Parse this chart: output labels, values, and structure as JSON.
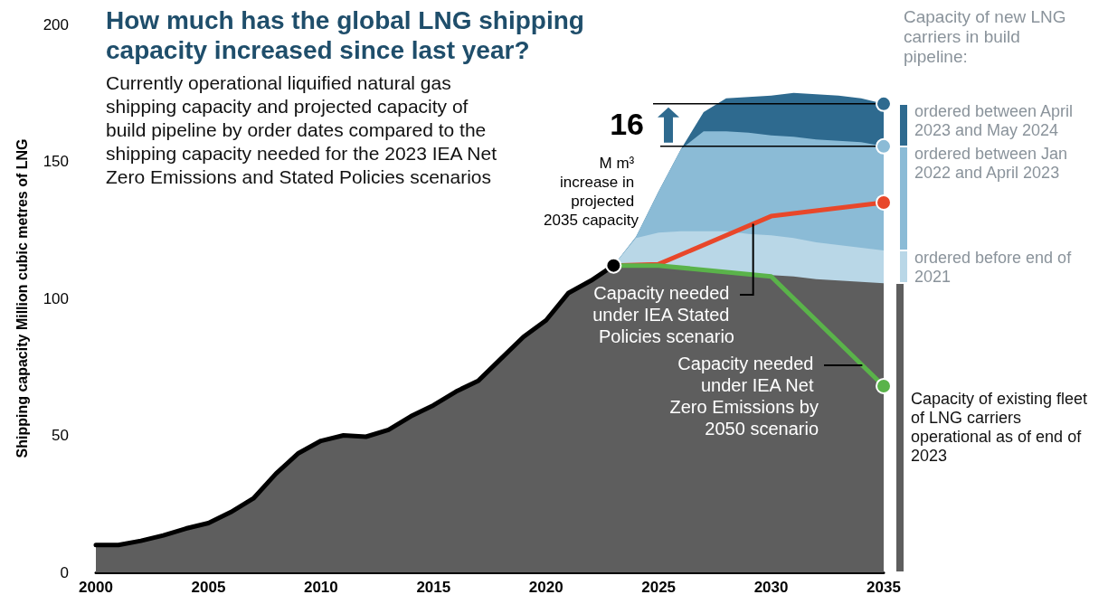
{
  "chart_data": {
    "type": "area",
    "title": "How much has the global LNG shipping capacity increased since last year?",
    "subtitle": "Currently operational liquified natural gas shipping capacity and projected capacity of build pipeline by order dates compared to the shipping capacity needed for the 2023 IEA Net Zero Emissions and Stated Policies scenarios",
    "ylabel": "Shipping capacity Million cubic metres of LNG",
    "legend_title": "Capacity of new LNG carriers in build pipeline:",
    "annotations": [
      {
        "text": "16",
        "x": 2035,
        "y": 171
      },
      "M m³ increase in projected 2035 capacity"
    ],
    "x": [
      2000,
      2001,
      2002,
      2003,
      2004,
      2005,
      2006,
      2007,
      2008,
      2009,
      2010,
      2011,
      2012,
      2013,
      2014,
      2015,
      2016,
      2017,
      2018,
      2019,
      2020,
      2021,
      2022,
      2023,
      2024,
      2025,
      2026,
      2027,
      2028,
      2029,
      2030,
      2031,
      2032,
      2033,
      2034,
      2035
    ],
    "stacked": true,
    "series": [
      {
        "name": "Capacity of existing fleet of LNG carriers operational as of end of 2023",
        "color": "#5e5e5e",
        "values": [
          10,
          10,
          11.5,
          13.5,
          16,
          18,
          22,
          27,
          36,
          43.5,
          48,
          50,
          49.5,
          52,
          57,
          61,
          66,
          70,
          78,
          86,
          92,
          102,
          106.5,
          112,
          112,
          111.5,
          111,
          110.5,
          110,
          109,
          108.5,
          108,
          107,
          106.5,
          106,
          105.5
        ]
      },
      {
        "name": "ordered before end of 2021",
        "color": "#b9d7e7",
        "values": [
          null,
          null,
          null,
          null,
          null,
          null,
          null,
          null,
          null,
          null,
          null,
          null,
          null,
          null,
          null,
          null,
          null,
          null,
          null,
          null,
          null,
          null,
          null,
          0,
          10,
          12.5,
          13.5,
          14,
          14.5,
          14.5,
          14.5,
          14,
          13.5,
          13,
          12.5,
          12
        ]
      },
      {
        "name": "ordered between Jan 2022 and April 2023",
        "color": "#8bbbd6",
        "values": [
          null,
          null,
          null,
          null,
          null,
          null,
          null,
          null,
          null,
          null,
          null,
          null,
          null,
          null,
          null,
          null,
          null,
          null,
          null,
          null,
          null,
          null,
          null,
          0,
          0.5,
          15,
          30,
          36.5,
          36.5,
          37,
          36.5,
          37,
          37.5,
          38,
          38.5,
          38
        ]
      },
      {
        "name": "ordered between April 2023 and May 2024",
        "color": "#2e6a8f",
        "values": [
          null,
          null,
          null,
          null,
          null,
          null,
          null,
          null,
          null,
          null,
          null,
          null,
          null,
          null,
          null,
          null,
          null,
          null,
          null,
          null,
          null,
          null,
          null,
          0,
          0,
          0,
          0,
          7,
          12,
          13,
          14.5,
          16,
          16.5,
          16.5,
          16,
          15.5
        ]
      },
      {
        "type": "line",
        "name": "Capacity needed under IEA Stated Policies scenario",
        "color": "#e8472a",
        "x": [
          2023,
          2025,
          2030,
          2035
        ],
        "values": [
          112,
          112.5,
          130,
          135
        ]
      },
      {
        "type": "line",
        "name": "Capacity needed under IEA Net Zero Emissions by 2050 scenario",
        "color": "#5ab34a",
        "x": [
          2023,
          2025,
          2030,
          2035
        ],
        "values": [
          112,
          112,
          108,
          68
        ]
      }
    ],
    "xlim": [
      2000,
      2035
    ],
    "xticks": [
      2000,
      2005,
      2010,
      2015,
      2020,
      2025,
      2030,
      2035
    ],
    "ylim": [
      0,
      200
    ],
    "yticks": [
      0,
      50,
      100,
      150,
      200
    ],
    "legend": "right",
    "line_style": "solid"
  }
}
